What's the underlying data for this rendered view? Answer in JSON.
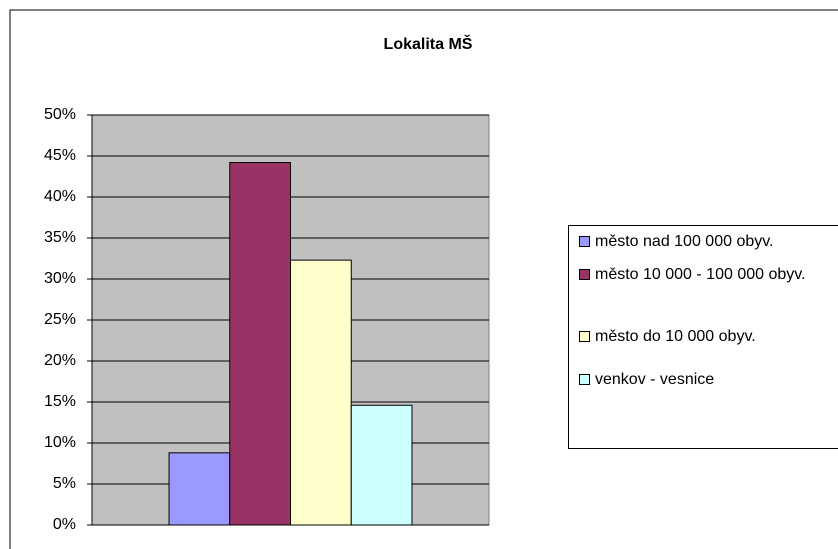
{
  "chart_data": {
    "type": "bar",
    "title": "Lokalita MŠ",
    "categories": [
      null
    ],
    "series": [
      {
        "name": "město nad 100 000 obyv.",
        "color": "#9999ff",
        "values": [
          8.8
        ]
      },
      {
        "name": "město 10 000 - 100 000 obyv.",
        "color": "#993366",
        "values": [
          44.2
        ]
      },
      {
        "name": "město do 10 000 obyv.",
        "color": "#ffffcc",
        "values": [
          32.3
        ]
      },
      {
        "name": "venkov - vesnice",
        "color": "#ccffff",
        "values": [
          14.6
        ]
      }
    ],
    "ylim": [
      0,
      50
    ],
    "yticks": [
      {
        "value": 0,
        "label": "0%"
      },
      {
        "value": 5,
        "label": "5%"
      },
      {
        "value": 10,
        "label": "10%"
      },
      {
        "value": 15,
        "label": "15%"
      },
      {
        "value": 20,
        "label": "20%"
      },
      {
        "value": 25,
        "label": "25%"
      },
      {
        "value": 30,
        "label": "30%"
      },
      {
        "value": 35,
        "label": "35%"
      },
      {
        "value": 40,
        "label": "40%"
      },
      {
        "value": 45,
        "label": "45%"
      },
      {
        "value": 50,
        "label": "50%"
      }
    ],
    "grid": true,
    "legend": "right"
  }
}
